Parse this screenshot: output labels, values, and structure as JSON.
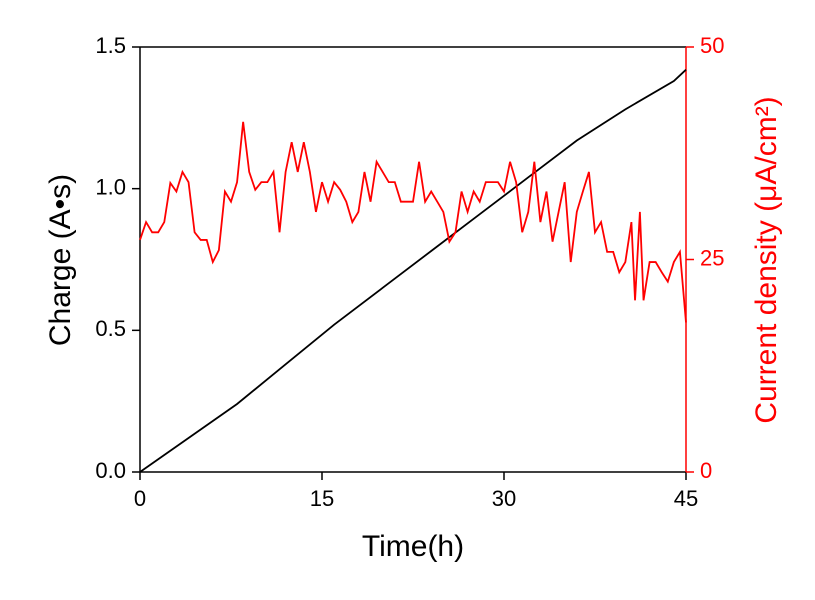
{
  "chart_data": {
    "type": "line",
    "xlabel": "Time(h)",
    "ylabel": "Charge (A•s)",
    "y2label": "Current density (μA/cm²)",
    "xlim": [
      0,
      45
    ],
    "xticks": [
      0,
      15,
      30,
      45
    ],
    "ylim": [
      0,
      1.5
    ],
    "yticks": [
      {
        "value": 0,
        "label": "0.0"
      },
      0.5,
      {
        "value": 1,
        "label": "1.0"
      },
      1.5
    ],
    "y2lim": [
      0,
      50
    ],
    "y2ticks": [
      0,
      25,
      50
    ],
    "series": [
      {
        "name": "Charge",
        "color": "#000000",
        "x": [
          0,
          4,
          8,
          12,
          16,
          20,
          24,
          28,
          32,
          36,
          40,
          44,
          45
        ],
        "values": [
          0,
          0.12,
          0.24,
          0.38,
          0.52,
          0.65,
          0.78,
          0.91,
          1.04,
          1.17,
          1.28,
          1.38,
          1.42
        ]
      },
      {
        "name": "Current density",
        "color": "#ff0000",
        "axis": "y2",
        "x": [
          0,
          0.5,
          1,
          1.5,
          2,
          2.5,
          3,
          3.5,
          4,
          4.5,
          5,
          5.5,
          6,
          6.5,
          7,
          7.5,
          8,
          8.5,
          9,
          9.5,
          10,
          10.5,
          11,
          11.5,
          12,
          12.5,
          13,
          13.5,
          14,
          14.5,
          15,
          15.5,
          16,
          16.5,
          17,
          17.5,
          18,
          18.5,
          19,
          19.5,
          20,
          20.5,
          21,
          21.5,
          22,
          22.5,
          23,
          23.5,
          24,
          24.5,
          25,
          25.5,
          26,
          26.5,
          27,
          27.5,
          28,
          28.5,
          29,
          29.5,
          30,
          30.5,
          31,
          31.5,
          32,
          32.5,
          33,
          33.5,
          34,
          34.5,
          35,
          35.5,
          36,
          36.5,
          37,
          37.5,
          38,
          38.5,
          39,
          39.5,
          40,
          40.5,
          40.8,
          41.2,
          41.5,
          42,
          42.5,
          43,
          43.5,
          44,
          44.5,
          45
        ],
        "values": [
          27.3,
          29.4,
          28.2,
          28.2,
          29.4,
          34,
          33,
          35.3,
          34.1,
          28.2,
          27.3,
          27.3,
          24.7,
          26.1,
          33,
          31.8,
          34.1,
          41.2,
          35.3,
          33.2,
          34.1,
          34.1,
          35.3,
          28.2,
          35.3,
          38.8,
          35.3,
          38.8,
          35.3,
          30.6,
          34.1,
          31.8,
          34.1,
          33.2,
          31.8,
          29.4,
          30.6,
          35.3,
          31.8,
          36.5,
          35.3,
          34.1,
          34.1,
          31.8,
          31.8,
          31.8,
          36.5,
          31.8,
          33,
          31.8,
          30.6,
          27.1,
          28.2,
          33,
          30.6,
          33,
          31.8,
          34.1,
          34.1,
          34.1,
          33,
          36.5,
          34.1,
          28.2,
          30.6,
          36.5,
          29.4,
          33,
          27.1,
          30.6,
          34.1,
          24.7,
          30.6,
          33,
          35.3,
          28.2,
          29.4,
          25.9,
          25.9,
          23.5,
          24.7,
          29.4,
          20.2,
          30.6,
          20.2,
          24.7,
          24.7,
          23.5,
          22.4,
          24.7,
          25.9,
          17.6
        ]
      }
    ]
  }
}
